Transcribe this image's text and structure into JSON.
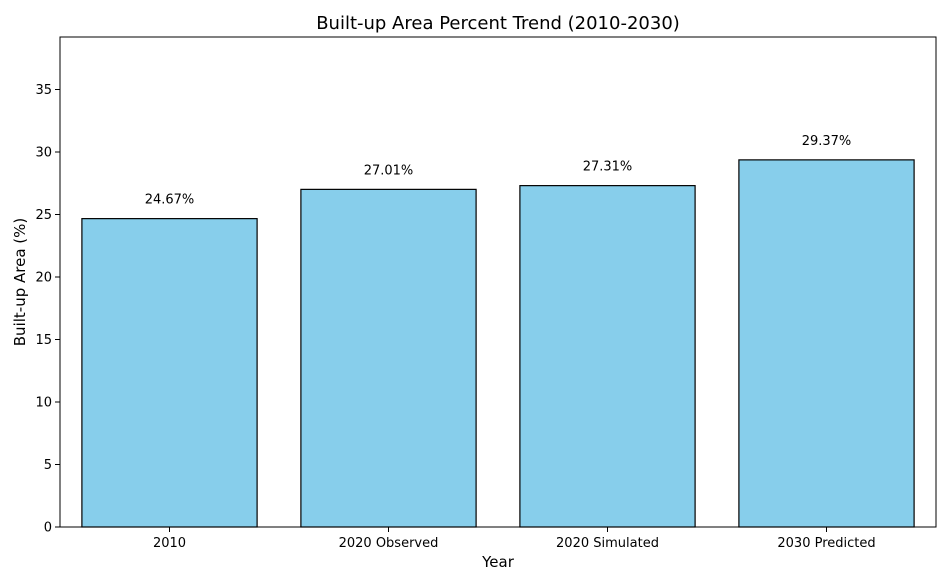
{
  "chart_data": {
    "type": "bar",
    "title": "Built-up Area Percent Trend (2010-2030)",
    "xlabel": "Year",
    "ylabel": "Built-up Area (%)",
    "categories": [
      "2010",
      "2020 Observed",
      "2020 Simulated",
      "2030 Predicted"
    ],
    "values": [
      24.67,
      27.01,
      27.31,
      29.37
    ],
    "data_labels": [
      "24.67%",
      "27.01%",
      "27.31%",
      "29.37%"
    ],
    "ylim": [
      0,
      39.2
    ],
    "yticks": [
      0,
      5,
      10,
      15,
      20,
      25,
      30,
      35
    ],
    "grid": false,
    "colors": {
      "bar": "#87CEEB",
      "edge": "#000000"
    }
  }
}
